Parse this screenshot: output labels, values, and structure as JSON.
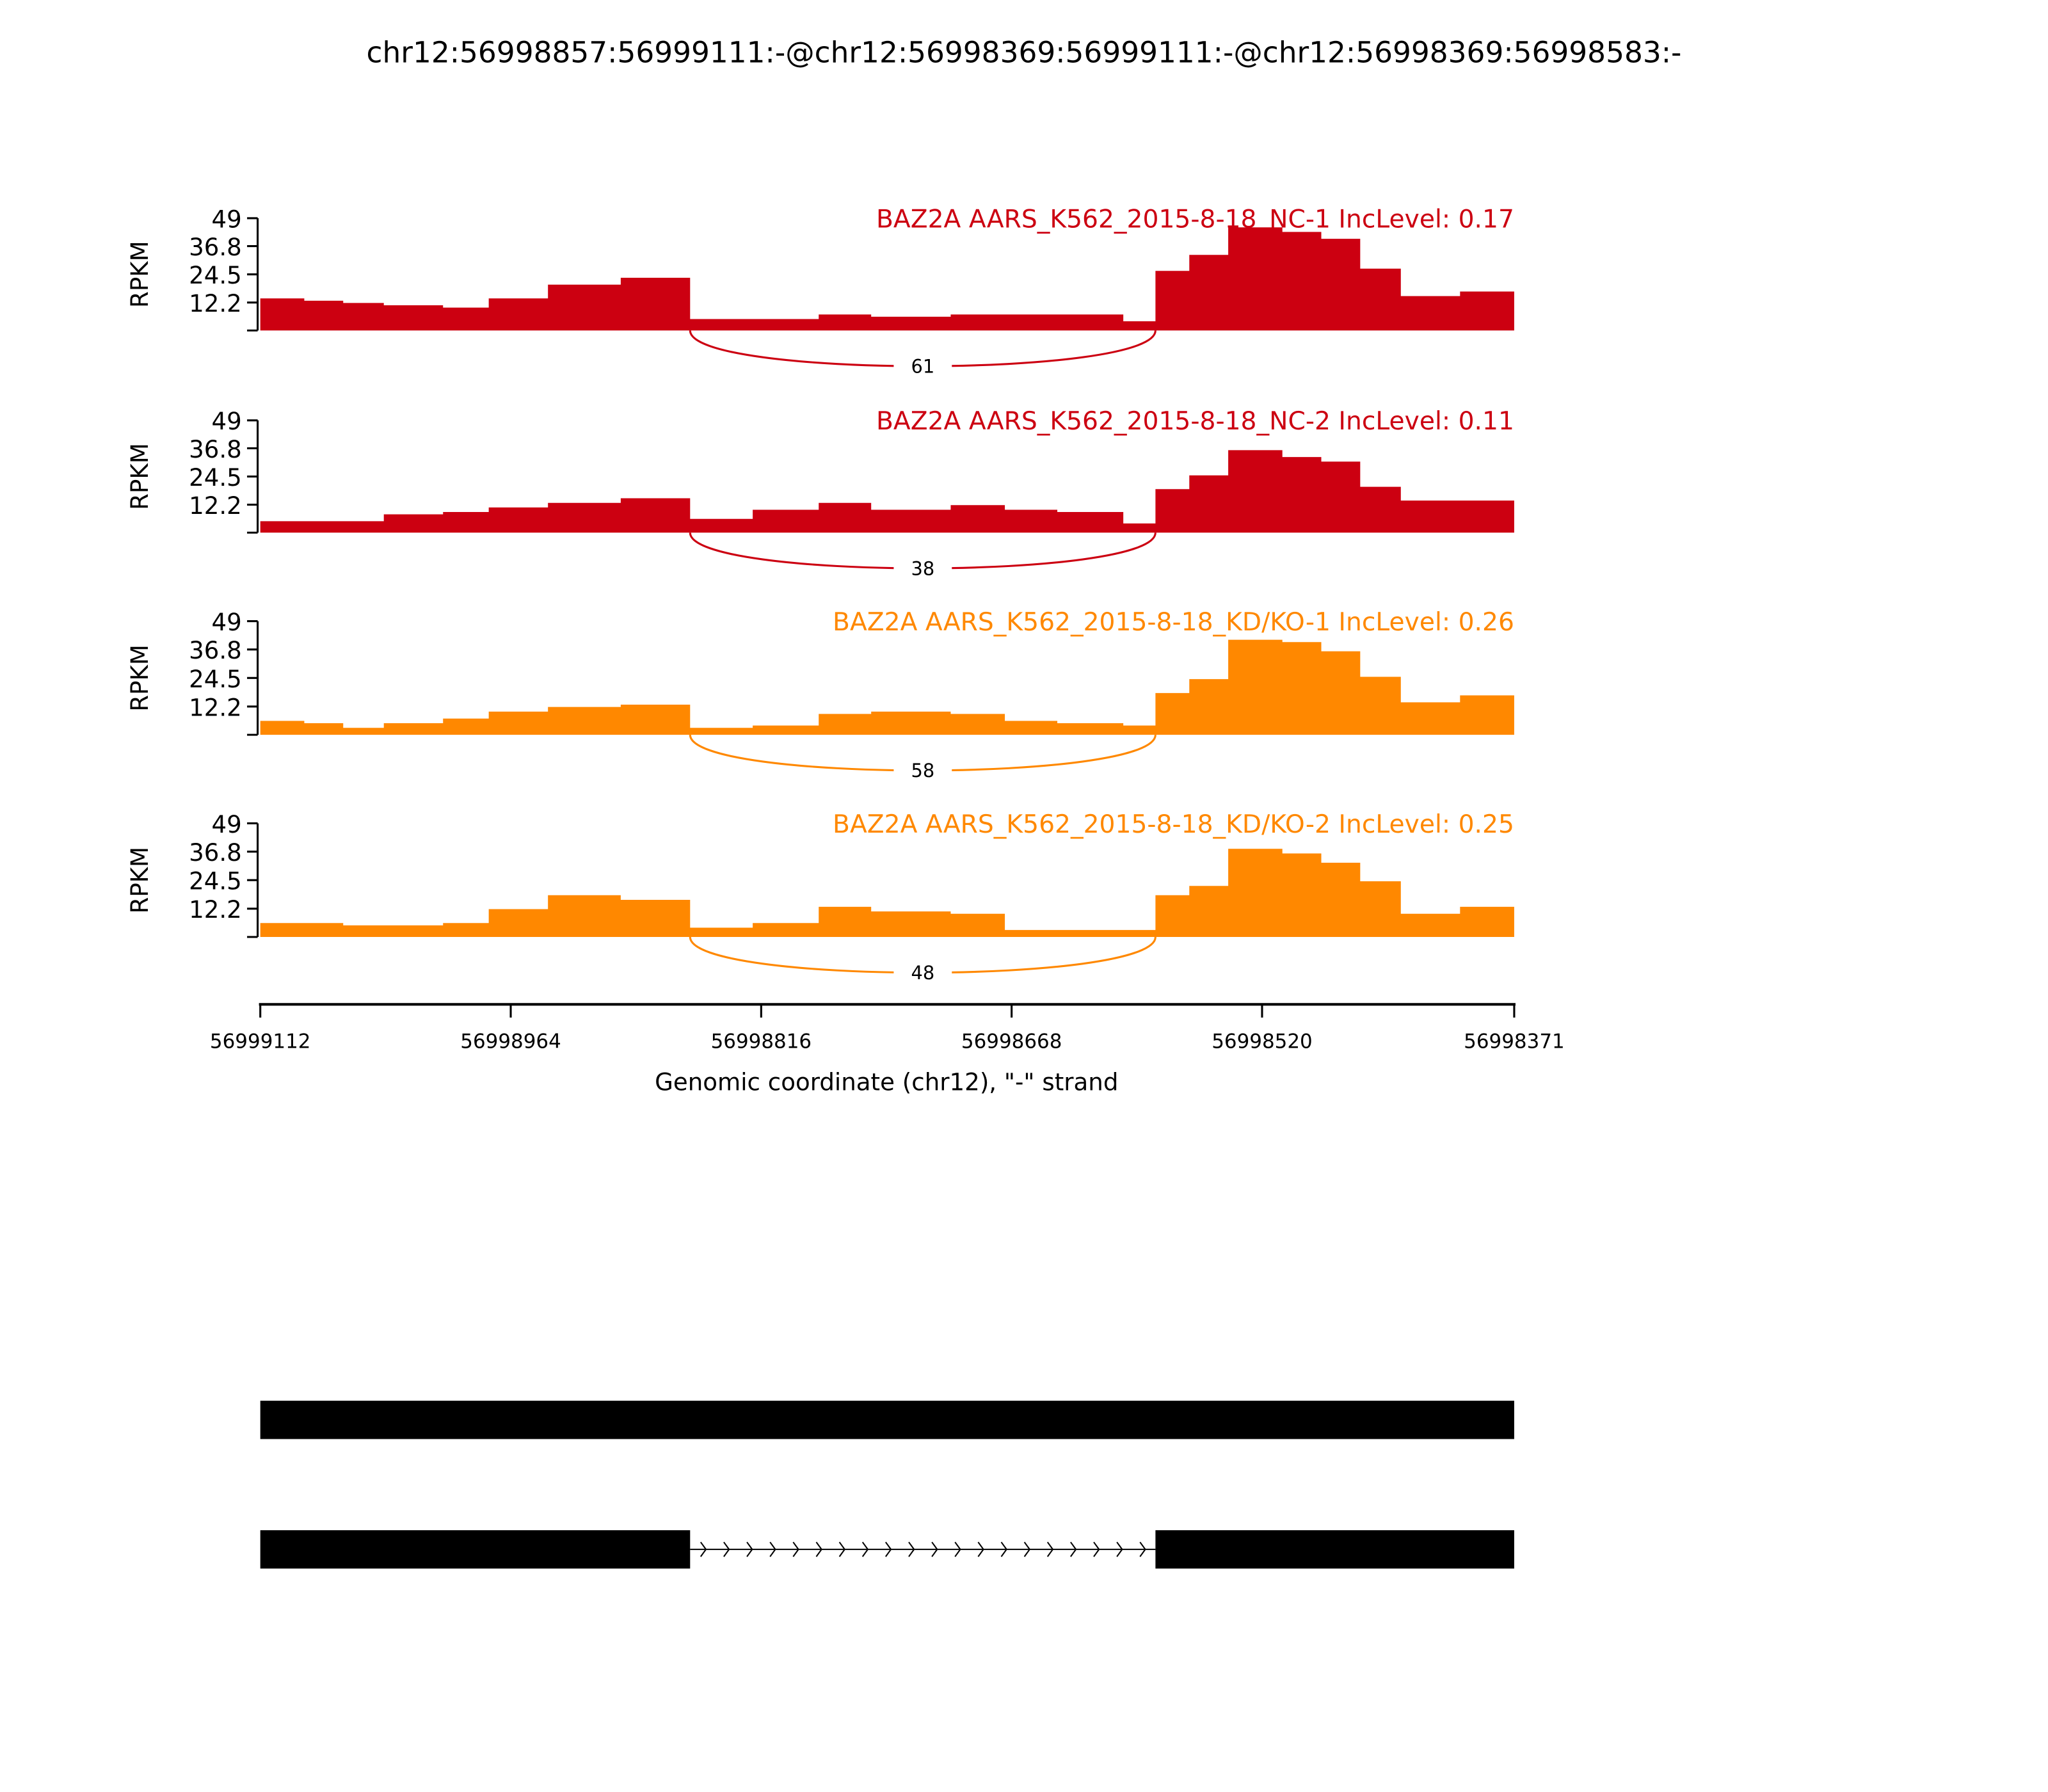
{
  "chart_data": {
    "type": "area",
    "title": "chr12:56998857:56999111:-@chr12:56998369:56999111:-@chr12:56998369:56998583:-",
    "xlabel": "Genomic coordinate (chr12), \"-\" strand",
    "ylabel": "RPKM",
    "xlim": [
      56999112,
      56998371
    ],
    "ylim": [
      0,
      49
    ],
    "xticks": [
      "56999112",
      "56998964",
      "56998816",
      "56998668",
      "56998520",
      "56998371"
    ],
    "yticks": [
      "49",
      "36.8",
      "24.5",
      "12.2"
    ],
    "ytick_values": [
      49,
      36.8,
      24.5,
      12.2
    ],
    "segment_starts": [
      56999112,
      56999086,
      56999063,
      56999039,
      56999004,
      56998977,
      56998942,
      56998899,
      56998858,
      56998821,
      56998782,
      56998751,
      56998704,
      56998672,
      56998641,
      56998602,
      56998583,
      56998563,
      56998540,
      56998508,
      56998485,
      56998462,
      56998438,
      56998403,
      56998371
    ],
    "junction": {
      "start": 56998858,
      "end": 56998583
    },
    "series": [
      {
        "name": "BAZ2A AARS_K562_2015-8-18_NC-1 IncLevel: 0.17",
        "color": "#cc0011",
        "junction_count": "61",
        "values": [
          14,
          13,
          12,
          11,
          10,
          14,
          20,
          23,
          5,
          5,
          7,
          6,
          7,
          7,
          7,
          4,
          26,
          33,
          45,
          43,
          40,
          27,
          15,
          17
        ]
      },
      {
        "name": "BAZ2A AARS_K562_2015-8-18_NC-2 IncLevel: 0.11",
        "color": "#cc0011",
        "junction_count": "38",
        "values": [
          5,
          5,
          5,
          8,
          9,
          11,
          13,
          15,
          6,
          10,
          13,
          10,
          12,
          10,
          9,
          4,
          19,
          25,
          36,
          33,
          31,
          20,
          14,
          14
        ]
      },
      {
        "name": "BAZ2A AARS_K562_2015-8-18_KD/KO-1 IncLevel: 0.26",
        "color": "#ff8800",
        "junction_count": "58",
        "values": [
          6,
          5,
          3,
          5,
          7,
          10,
          12,
          13,
          3,
          4,
          9,
          10,
          9,
          6,
          5,
          4,
          18,
          24,
          41,
          40,
          36,
          25,
          14,
          17
        ]
      },
      {
        "name": "BAZ2A AARS_K562_2015-8-18_KD/KO-2 IncLevel: 0.25",
        "color": "#ff8800",
        "junction_count": "48",
        "values": [
          6,
          6,
          5,
          5,
          6,
          12,
          18,
          16,
          4,
          6,
          13,
          11,
          10,
          3,
          3,
          3,
          18,
          22,
          38,
          36,
          32,
          24,
          10,
          13
        ]
      }
    ],
    "gene_models": [
      {
        "exons": [
          [
            56999112,
            56998371
          ]
        ]
      },
      {
        "exons": [
          [
            56999112,
            56998858
          ],
          [
            56998583,
            56998371
          ]
        ]
      }
    ]
  }
}
